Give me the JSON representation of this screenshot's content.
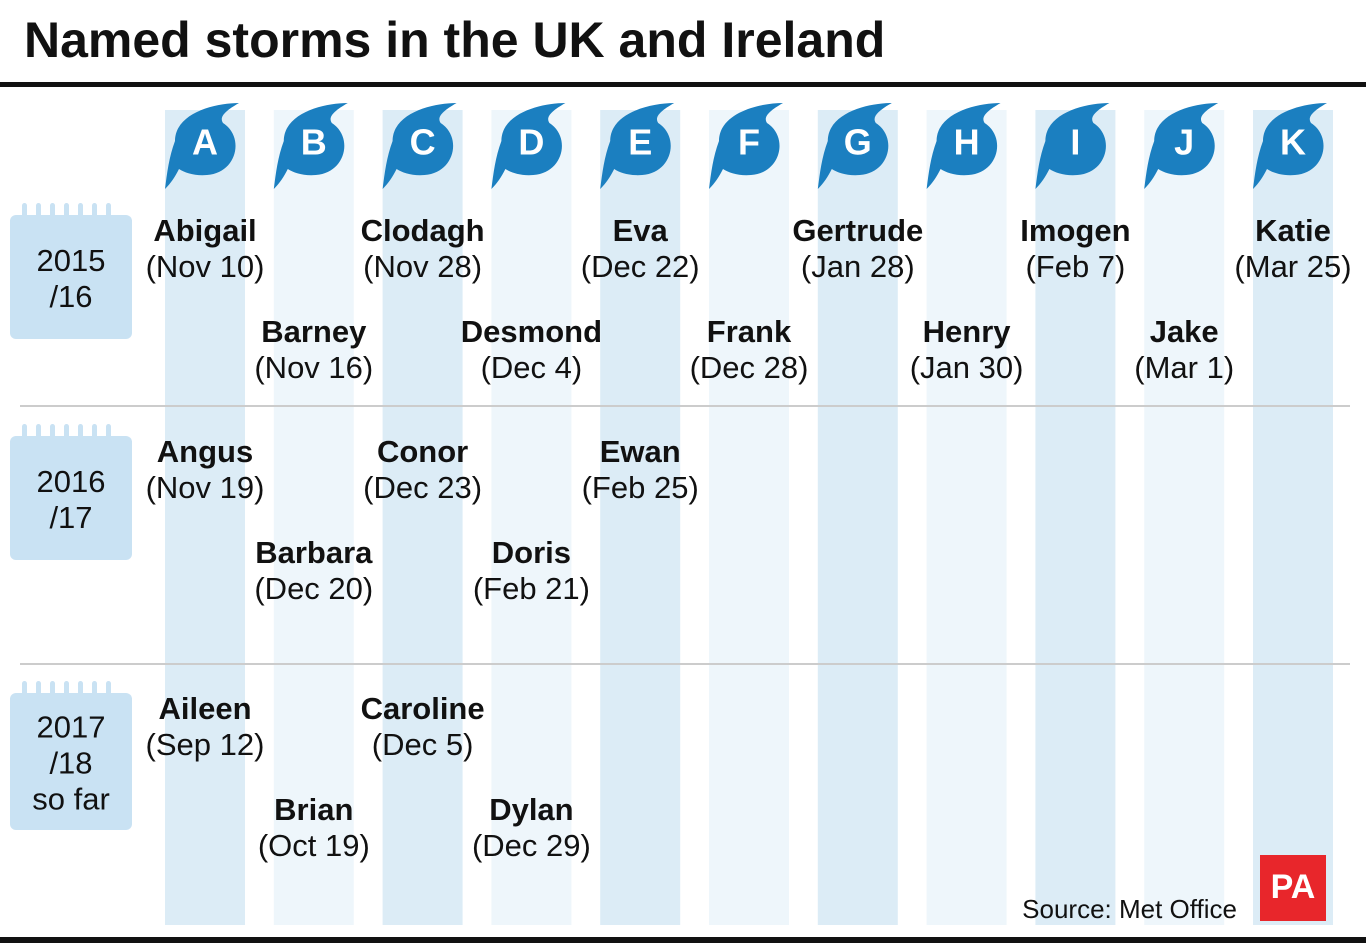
{
  "title": "Named storms in the UK and Ireland",
  "letters": [
    "A",
    "B",
    "C",
    "D",
    "E",
    "F",
    "G",
    "H",
    "I",
    "J",
    "K"
  ],
  "seasons": [
    {
      "label": [
        "2015",
        "/16"
      ],
      "storms": [
        {
          "name": "Abigail",
          "date": "(Nov 10)"
        },
        {
          "name": "Barney",
          "date": "(Nov 16)"
        },
        {
          "name": "Clodagh",
          "date": "(Nov 28)"
        },
        {
          "name": "Desmond",
          "date": "(Dec 4)"
        },
        {
          "name": "Eva",
          "date": "(Dec 22)"
        },
        {
          "name": "Frank",
          "date": "(Dec 28)"
        },
        {
          "name": "Gertrude",
          "date": "(Jan 28)"
        },
        {
          "name": "Henry",
          "date": "(Jan 30)"
        },
        {
          "name": "Imogen",
          "date": "(Feb 7)"
        },
        {
          "name": "Jake",
          "date": "(Mar 1)"
        },
        {
          "name": "Katie",
          "date": "(Mar 25)"
        }
      ]
    },
    {
      "label": [
        "2016",
        "/17"
      ],
      "storms": [
        {
          "name": "Angus",
          "date": "(Nov 19)"
        },
        {
          "name": "Barbara",
          "date": "(Dec 20)"
        },
        {
          "name": "Conor",
          "date": "(Dec 23)"
        },
        {
          "name": "Doris",
          "date": "(Feb 21)"
        },
        {
          "name": "Ewan",
          "date": "(Feb 25)"
        }
      ]
    },
    {
      "label": [
        "2017",
        "/18",
        "so far"
      ],
      "storms": [
        {
          "name": "Aileen",
          "date": "(Sep 12)"
        },
        {
          "name": "Brian",
          "date": "(Oct 19)"
        },
        {
          "name": "Caroline",
          "date": "(Dec 5)"
        },
        {
          "name": "Dylan",
          "date": "(Dec 29)"
        }
      ]
    }
  ],
  "source": "Source: Met Office",
  "logo": "PA"
}
